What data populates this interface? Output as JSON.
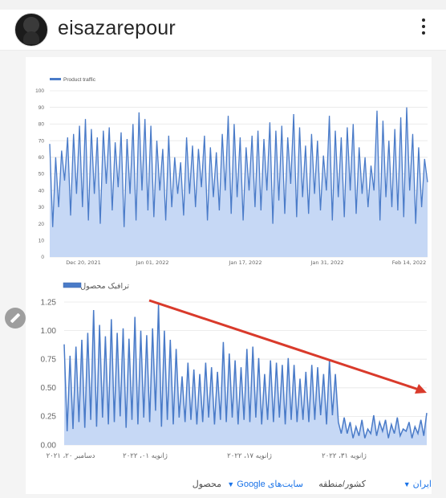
{
  "header": {
    "username": "eisazarepour"
  },
  "chart_data": [
    {
      "type": "line",
      "legend": "Product traffic",
      "ylim": [
        0,
        100
      ],
      "y_ticks": [
        "0",
        "10",
        "20",
        "30",
        "40",
        "50",
        "60",
        "70",
        "80",
        "90",
        "100"
      ],
      "x_ticks": [
        "Dec 20, 2021",
        "Jan 01, 2022",
        "Jan 17, 2022",
        "Jan 31, 2022",
        "Feb 14, 2022"
      ],
      "series": [
        {
          "name": "Product traffic",
          "values": [
            68,
            18,
            60,
            30,
            64,
            46,
            72,
            25,
            74,
            38,
            79,
            30,
            83,
            22,
            77,
            38,
            72,
            20,
            76,
            44,
            78,
            28,
            69,
            42,
            75,
            18,
            71,
            38,
            80,
            22,
            87,
            40,
            83,
            28,
            79,
            24,
            70,
            40,
            65,
            22,
            73,
            30,
            60,
            38,
            57,
            25,
            72,
            38,
            67,
            30,
            65,
            42,
            73,
            22,
            66,
            36,
            63,
            28,
            74,
            40,
            85,
            26,
            80,
            36,
            72,
            22,
            66,
            40,
            73,
            30,
            76,
            28,
            71,
            40,
            81,
            20,
            76,
            34,
            79,
            26,
            72,
            44,
            86,
            24,
            78,
            36,
            67,
            26,
            74,
            38,
            70,
            28,
            61,
            40,
            85,
            22,
            76,
            36,
            72,
            24,
            78,
            40,
            80,
            26,
            66,
            38,
            60,
            30,
            55,
            40,
            88,
            22,
            82,
            36,
            70,
            30,
            77,
            28,
            84,
            24,
            90,
            40,
            74,
            20,
            66,
            30,
            59,
            45
          ]
        }
      ]
    },
    {
      "type": "line",
      "legend": "ترافیک محصول",
      "ylim": [
        0,
        1.25
      ],
      "y_ticks": [
        "0.00",
        "0.25",
        "0.50",
        "0.75",
        "1.00",
        "1.25"
      ],
      "x_ticks": [
        "دسامبر ۲۰، ۲۰۲۱",
        "ژانویه ۰۱، ۲۰۲۲",
        "ژانویه ۱۷، ۲۰۲۲",
        "ژانویه ۳۱، ۲۰۲۲"
      ],
      "series": [
        {
          "name": "ترافیک محصول",
          "values": [
            0.88,
            0.12,
            0.78,
            0.14,
            0.86,
            0.2,
            0.92,
            0.15,
            0.98,
            0.22,
            1.18,
            0.16,
            1.05,
            0.24,
            0.95,
            0.18,
            1.1,
            0.2,
            0.98,
            0.25,
            1.02,
            0.15,
            0.93,
            0.22,
            1.12,
            0.18,
            1.0,
            0.24,
            0.96,
            0.2,
            1.02,
            0.3,
            1.23,
            0.16,
            1.0,
            0.22,
            0.92,
            0.18,
            0.84,
            0.24,
            0.6,
            0.2,
            0.72,
            0.22,
            0.66,
            0.18,
            0.62,
            0.2,
            0.72,
            0.24,
            0.68,
            0.18,
            0.64,
            0.22,
            0.9,
            0.2,
            0.8,
            0.24,
            0.74,
            0.18,
            0.68,
            0.22,
            0.84,
            0.2,
            0.86,
            0.24,
            0.76,
            0.18,
            0.62,
            0.22,
            0.74,
            0.2,
            0.72,
            0.24,
            0.7,
            0.18,
            0.76,
            0.22,
            0.7,
            0.2,
            0.58,
            0.22,
            0.64,
            0.2,
            0.7,
            0.22,
            0.68,
            0.26,
            0.62,
            0.18,
            0.74,
            0.26,
            0.62,
            0.2,
            0.1,
            0.24,
            0.1,
            0.2,
            0.06,
            0.16,
            0.08,
            0.22,
            0.06,
            0.14,
            0.1,
            0.26,
            0.08,
            0.2,
            0.12,
            0.22,
            0.06,
            0.18,
            0.1,
            0.24,
            0.08,
            0.14,
            0.12,
            0.2,
            0.06,
            0.16,
            0.1,
            0.22,
            0.08,
            0.28
          ]
        }
      ]
    }
  ],
  "footer": {
    "product_label": "محصول",
    "sites_chip": "سایت‌های Google",
    "region_label": "کشور/منطقه",
    "region_chip": "ایران"
  },
  "colors": {
    "line": "#4a7bc8",
    "fill": "#c6d8f5",
    "arrow": "#d93a2b"
  }
}
